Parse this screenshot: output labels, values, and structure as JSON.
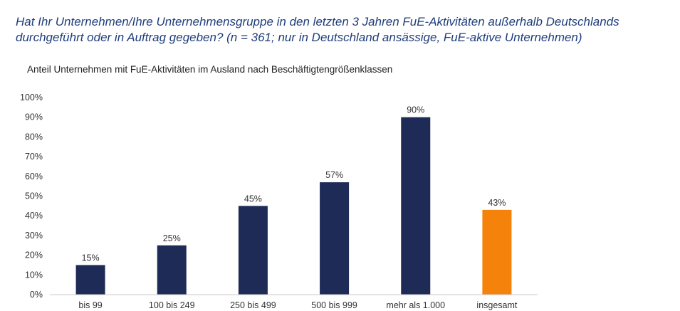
{
  "header": {
    "title": "Hat Ihr Unternehmen/Ihre Unternehmensgruppe in den letzten 3 Jahren FuE-Aktivitäten außerhalb Deutschlands durchgeführt oder in Auftrag gegeben? (n = 361; nur in Deutschland ansässige, FuE-aktive Unternehmen)"
  },
  "chart_data": {
    "type": "bar",
    "title": "Hat Ihr Unternehmen/Ihre Unternehmensgruppe in den letzten 3 Jahren FuE-Aktivitäten außerhalb Deutschlands durchgeführt oder in Auftrag gegeben? (n = 361; nur in Deutschland ansässige, FuE-aktive Unternehmen)",
    "subtitle": "Anteil Unternehmen mit FuE-Aktivitäten im Ausland nach Beschäftigtengrößenklassen",
    "xlabel": "",
    "ylabel": "",
    "categories": [
      "bis 99",
      "100 bis 249",
      "250 bis 499",
      "500 bis 999",
      "mehr als 1.000",
      "insgesamt"
    ],
    "values": [
      15,
      25,
      45,
      57,
      90,
      43
    ],
    "data_labels": [
      "15%",
      "25%",
      "45%",
      "57%",
      "90%",
      "43%"
    ],
    "ylim": [
      0,
      100
    ],
    "yticks": [
      0,
      10,
      20,
      30,
      40,
      50,
      60,
      70,
      80,
      90,
      100
    ],
    "ytick_labels": [
      "0%",
      "10%",
      "20%",
      "30%",
      "40%",
      "50%",
      "60%",
      "70%",
      "80%",
      "90%",
      "100%"
    ],
    "grid": false,
    "legend": "none",
    "colors": [
      "#1f2b57",
      "#1f2b57",
      "#1f2b57",
      "#1f2b57",
      "#1f2b57",
      "#f5820b"
    ]
  },
  "style": {
    "title_color": "#1f3c7a",
    "axis_color": "#c8c8c8"
  }
}
